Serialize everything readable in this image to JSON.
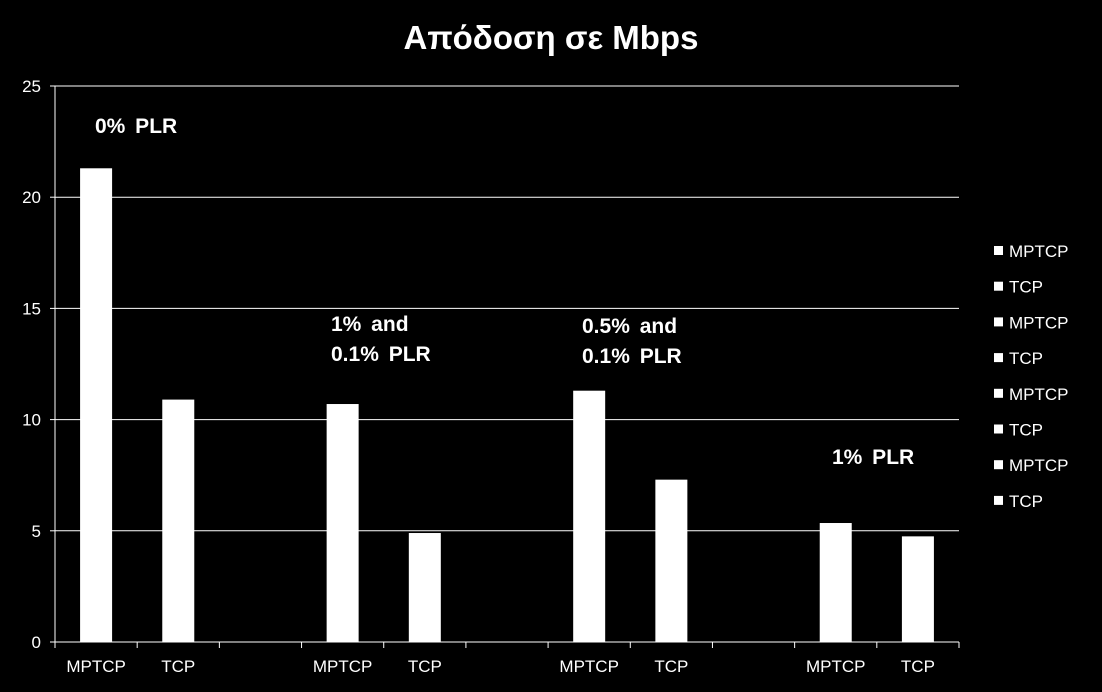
{
  "chart_data": {
    "type": "bar",
    "title": "Απόδοση σε Mbps",
    "xlabel": "",
    "ylabel": "",
    "ylim": [
      0,
      25
    ],
    "yticks": [
      0,
      5,
      10,
      15,
      20,
      25
    ],
    "grid": true,
    "legend_position": "right",
    "categories": [
      "MPTCP",
      "TCP",
      "",
      "MPTCP",
      "TCP",
      "",
      "MPTCP",
      "TCP",
      "",
      "MPTCP",
      "TCP"
    ],
    "series": [
      {
        "name": "MPTCP",
        "values": [
          21.3,
          null,
          null,
          null,
          null,
          null,
          null,
          null,
          null,
          null,
          null
        ]
      },
      {
        "name": "TCP",
        "values": [
          null,
          10.9,
          null,
          null,
          null,
          null,
          null,
          null,
          null,
          null,
          null
        ]
      },
      {
        "name": "MPTCP",
        "values": [
          null,
          null,
          null,
          10.7,
          null,
          null,
          null,
          null,
          null,
          null,
          null
        ]
      },
      {
        "name": "TCP",
        "values": [
          null,
          null,
          null,
          null,
          4.9,
          null,
          null,
          null,
          null,
          null,
          null
        ]
      },
      {
        "name": "MPTCP",
        "values": [
          null,
          null,
          null,
          null,
          null,
          null,
          11.3,
          null,
          null,
          null,
          null
        ]
      },
      {
        "name": "TCP",
        "values": [
          null,
          null,
          null,
          null,
          null,
          null,
          null,
          7.3,
          null,
          null,
          null
        ]
      },
      {
        "name": "MPTCP",
        "values": [
          null,
          null,
          null,
          null,
          null,
          null,
          null,
          null,
          null,
          5.35,
          null
        ]
      },
      {
        "name": "TCP",
        "values": [
          null,
          null,
          null,
          null,
          null,
          null,
          null,
          null,
          null,
          null,
          4.75
        ]
      }
    ],
    "annotations": [
      {
        "lines": [
          "0%  PLR"
        ]
      },
      {
        "lines": [
          "1%  and",
          "0.1%  PLR"
        ]
      },
      {
        "lines": [
          "0.5%  and",
          "0.1%  PLR"
        ]
      },
      {
        "lines": [
          "1%  PLR"
        ]
      }
    ]
  },
  "colors": {
    "background": "#000000",
    "bar": "#ffffff",
    "grid": "#ffffff",
    "text": "#ffffff"
  }
}
